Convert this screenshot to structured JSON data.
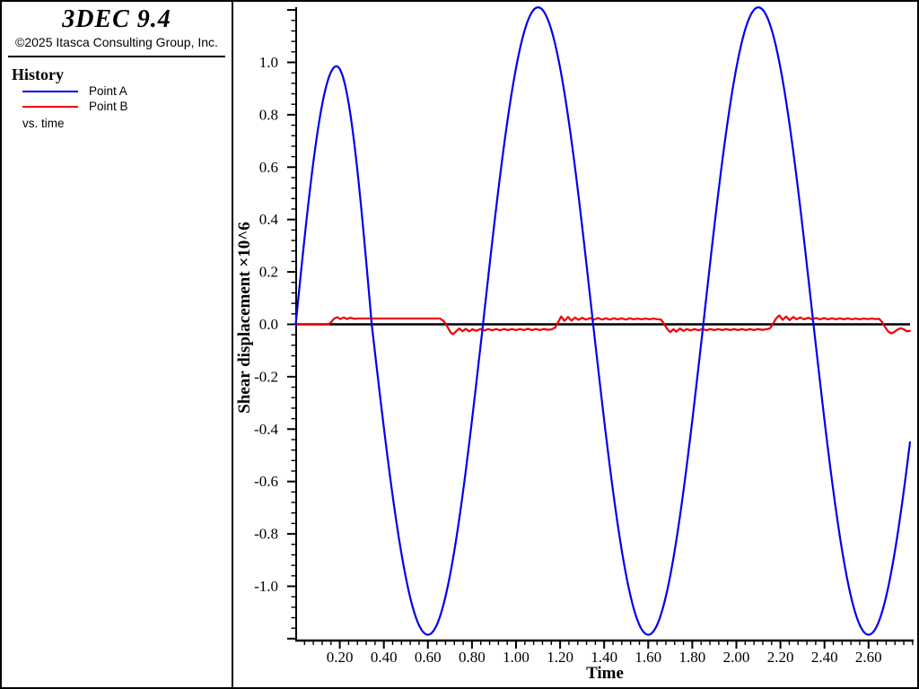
{
  "app": {
    "title": "3DEC 9.4",
    "copyright": "©2025 Itasca Consulting Group, Inc."
  },
  "sidebar": {
    "section_title": "History",
    "legend": [
      {
        "label": "Point A",
        "color": "#0000EE"
      },
      {
        "label": "Point B",
        "color": "#EE0000"
      }
    ],
    "subtitle": "vs. time"
  },
  "chart_data": {
    "type": "line",
    "title": "History",
    "xlabel": "Time",
    "ylabel": "Shear displacement ×10^6",
    "xlim": [
      0,
      2.8
    ],
    "ylim": [
      -1.21,
      1.215
    ],
    "grid": false,
    "legend_position": "sidebar-left",
    "zero_line": true,
    "axis_color": "#000000",
    "x_minor_step": 0.04,
    "y_minor_step": 0.04,
    "y_major_step": 0.2,
    "x_ticks": [
      {
        "t": 0.2,
        "label": "0.20"
      },
      {
        "t": 0.4,
        "label": "0.40"
      },
      {
        "t": 0.6,
        "label": "0.60"
      },
      {
        "t": 0.8,
        "label": "0.80"
      },
      {
        "t": 1.0,
        "label": "1.00"
      },
      {
        "t": 1.2,
        "label": "1.20"
      },
      {
        "t": 1.4,
        "label": "1.40"
      },
      {
        "t": 1.6,
        "label": "1.60"
      },
      {
        "t": 1.8,
        "label": "1.80"
      },
      {
        "t": 2.0,
        "label": "2.00"
      },
      {
        "t": 2.2,
        "label": "2.20"
      },
      {
        "t": 2.4,
        "label": "2.40"
      },
      {
        "t": 2.6,
        "label": "2.60"
      }
    ],
    "y_ticks": [
      {
        "v": 1.0,
        "label": "1.0"
      },
      {
        "v": 0.8,
        "label": "0.8"
      },
      {
        "v": 0.6,
        "label": "0.6"
      },
      {
        "v": 0.4,
        "label": "0.4"
      },
      {
        "v": 0.2,
        "label": "0.2"
      },
      {
        "v": 0.0,
        "label": "0.0"
      },
      {
        "v": -0.2,
        "label": "-0.2"
      },
      {
        "v": -0.4,
        "label": "-0.4"
      },
      {
        "v": -0.6,
        "label": "-0.6"
      },
      {
        "v": -0.8,
        "label": "-0.8"
      },
      {
        "v": -1.0,
        "label": "-1.0"
      }
    ],
    "series": [
      {
        "name": "Point A",
        "color": "#0000EE",
        "render": "quarter_wave",
        "t_end": 2.788,
        "keypoints": [
          [
            0.0,
            0.0
          ],
          [
            0.185,
            0.985
          ],
          [
            0.345,
            0.0
          ],
          [
            0.6,
            -1.185
          ],
          [
            0.85,
            0.0
          ],
          [
            1.1,
            1.21
          ],
          [
            1.35,
            0.0
          ],
          [
            1.6,
            -1.185
          ],
          [
            1.85,
            0.0
          ],
          [
            2.1,
            1.21
          ],
          [
            2.35,
            0.0
          ],
          [
            2.6,
            -1.185
          ],
          [
            2.85,
            0.0
          ]
        ]
      },
      {
        "name": "Point B",
        "color": "#EE0000",
        "render": "polyline",
        "points": [
          [
            0.0,
            0.0
          ],
          [
            0.15,
            0.0
          ],
          [
            0.163,
            0.01
          ],
          [
            0.173,
            0.021
          ],
          [
            0.188,
            0.027
          ],
          [
            0.203,
            0.02
          ],
          [
            0.218,
            0.026
          ],
          [
            0.233,
            0.02
          ],
          [
            0.248,
            0.025
          ],
          [
            0.265,
            0.021
          ],
          [
            0.285,
            0.022
          ],
          [
            0.655,
            0.022
          ],
          [
            0.672,
            0.012
          ],
          [
            0.688,
            -0.008
          ],
          [
            0.702,
            -0.03
          ],
          [
            0.714,
            -0.038
          ],
          [
            0.728,
            -0.027
          ],
          [
            0.742,
            -0.016
          ],
          [
            0.757,
            -0.026
          ],
          [
            0.772,
            -0.017
          ],
          [
            0.787,
            -0.027
          ],
          [
            0.802,
            -0.019
          ],
          [
            0.82,
            -0.025
          ],
          [
            0.838,
            -0.018
          ],
          [
            0.856,
            -0.024
          ],
          [
            0.874,
            -0.018
          ],
          [
            0.892,
            -0.023
          ],
          [
            0.91,
            -0.018
          ],
          [
            0.928,
            -0.023
          ],
          [
            0.946,
            -0.018
          ],
          [
            0.964,
            -0.022
          ],
          [
            0.982,
            -0.018
          ],
          [
            1.0,
            -0.022
          ],
          [
            1.018,
            -0.018
          ],
          [
            1.036,
            -0.022
          ],
          [
            1.054,
            -0.017
          ],
          [
            1.072,
            -0.022
          ],
          [
            1.09,
            -0.018
          ],
          [
            1.108,
            -0.022
          ],
          [
            1.126,
            -0.018
          ],
          [
            1.144,
            -0.021
          ],
          [
            1.162,
            -0.019
          ],
          [
            1.178,
            -0.012
          ],
          [
            1.192,
            0.01
          ],
          [
            1.205,
            0.03
          ],
          [
            1.22,
            0.013
          ],
          [
            1.236,
            0.028
          ],
          [
            1.252,
            0.014
          ],
          [
            1.268,
            0.026
          ],
          [
            1.284,
            0.017
          ],
          [
            1.3,
            0.025
          ],
          [
            1.318,
            0.018
          ],
          [
            1.336,
            0.024
          ],
          [
            1.354,
            0.018
          ],
          [
            1.372,
            0.024
          ],
          [
            1.39,
            0.018
          ],
          [
            1.408,
            0.023
          ],
          [
            1.426,
            0.018
          ],
          [
            1.444,
            0.023
          ],
          [
            1.462,
            0.019
          ],
          [
            1.48,
            0.023
          ],
          [
            1.498,
            0.018
          ],
          [
            1.516,
            0.023
          ],
          [
            1.534,
            0.019
          ],
          [
            1.552,
            0.022
          ],
          [
            1.57,
            0.019
          ],
          [
            1.588,
            0.022
          ],
          [
            1.606,
            0.019
          ],
          [
            1.624,
            0.022
          ],
          [
            1.642,
            0.019
          ],
          [
            1.658,
            0.018
          ],
          [
            1.672,
            0.002
          ],
          [
            1.686,
            -0.018
          ],
          [
            1.7,
            -0.03
          ],
          [
            1.714,
            -0.019
          ],
          [
            1.728,
            -0.028
          ],
          [
            1.744,
            -0.016
          ],
          [
            1.76,
            -0.025
          ],
          [
            1.776,
            -0.018
          ],
          [
            1.792,
            -0.024
          ],
          [
            1.81,
            -0.018
          ],
          [
            1.828,
            -0.023
          ],
          [
            1.846,
            -0.018
          ],
          [
            1.864,
            -0.023
          ],
          [
            1.882,
            -0.018
          ],
          [
            1.9,
            -0.022
          ],
          [
            1.918,
            -0.018
          ],
          [
            1.936,
            -0.022
          ],
          [
            1.954,
            -0.018
          ],
          [
            1.972,
            -0.022
          ],
          [
            1.99,
            -0.018
          ],
          [
            2.008,
            -0.022
          ],
          [
            2.026,
            -0.018
          ],
          [
            2.044,
            -0.022
          ],
          [
            2.062,
            -0.018
          ],
          [
            2.08,
            -0.022
          ],
          [
            2.098,
            -0.018
          ],
          [
            2.116,
            -0.021
          ],
          [
            2.134,
            -0.019
          ],
          [
            2.152,
            -0.016
          ],
          [
            2.165,
            0.0
          ],
          [
            2.18,
            0.022
          ],
          [
            2.195,
            0.034
          ],
          [
            2.21,
            0.017
          ],
          [
            2.226,
            0.03
          ],
          [
            2.242,
            0.016
          ],
          [
            2.258,
            0.028
          ],
          [
            2.274,
            0.019
          ],
          [
            2.29,
            0.026
          ],
          [
            2.308,
            0.019
          ],
          [
            2.326,
            0.025
          ],
          [
            2.344,
            0.019
          ],
          [
            2.362,
            0.024
          ],
          [
            2.38,
            0.019
          ],
          [
            2.398,
            0.024
          ],
          [
            2.416,
            0.019
          ],
          [
            2.434,
            0.023
          ],
          [
            2.452,
            0.019
          ],
          [
            2.47,
            0.023
          ],
          [
            2.488,
            0.019
          ],
          [
            2.506,
            0.023
          ],
          [
            2.524,
            0.019
          ],
          [
            2.542,
            0.022
          ],
          [
            2.56,
            0.019
          ],
          [
            2.578,
            0.022
          ],
          [
            2.596,
            0.02
          ],
          [
            2.614,
            0.022
          ],
          [
            2.632,
            0.02
          ],
          [
            2.648,
            0.021
          ],
          [
            2.662,
            0.008
          ],
          [
            2.676,
            -0.012
          ],
          [
            2.69,
            -0.028
          ],
          [
            2.704,
            -0.035
          ],
          [
            2.718,
            -0.028
          ],
          [
            2.732,
            -0.02
          ],
          [
            2.746,
            -0.015
          ],
          [
            2.76,
            -0.019
          ],
          [
            2.774,
            -0.027
          ],
          [
            2.788,
            -0.025
          ]
        ]
      }
    ]
  }
}
